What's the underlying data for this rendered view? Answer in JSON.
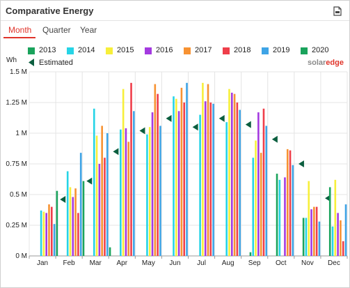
{
  "widget": {
    "title": "Comparative Energy",
    "export_icon": "document-export-icon"
  },
  "tabs": [
    {
      "label": "Month",
      "active": true
    },
    {
      "label": "Quarter",
      "active": false
    },
    {
      "label": "Year",
      "active": false
    }
  ],
  "colors": {
    "accent": "#e0342a",
    "estimated_marker": "#0b5e3f"
  },
  "brand": {
    "part1": "solar",
    "part2": "edge"
  },
  "chart_data": {
    "type": "bar",
    "title": "",
    "ylabel": "Wh",
    "xlabel": "",
    "ylim": [
      0,
      1500000
    ],
    "yticks": [
      0,
      250000,
      500000,
      750000,
      1000000,
      1250000,
      1500000
    ],
    "ytick_labels": [
      "0 M",
      "0.25 M",
      "0.5 M",
      "0.75 M",
      "1 M",
      "1.25 M",
      "1.5 M"
    ],
    "grid": true,
    "legend_position": "top",
    "categories": [
      "Jan",
      "Feb",
      "Mar",
      "Apr",
      "May",
      "Jun",
      "Jul",
      "Aug",
      "Sep",
      "Oct",
      "Nov",
      "Dec"
    ],
    "series": [
      {
        "name": "2013",
        "color": "#1aa35c",
        "values": [
          null,
          null,
          null,
          null,
          null,
          null,
          null,
          null,
          30000,
          670000,
          310000,
          560000
        ]
      },
      {
        "name": "2014",
        "color": "#26d4e6",
        "values": [
          370000,
          690000,
          1200000,
          1030000,
          990000,
          1300000,
          1150000,
          1090000,
          800000,
          620000,
          310000,
          240000
        ]
      },
      {
        "name": "2015",
        "color": "#f7ef3a",
        "values": [
          360000,
          560000,
          980000,
          1360000,
          1050000,
          1280000,
          1410000,
          1360000,
          940000,
          null,
          610000,
          620000
        ]
      },
      {
        "name": "2016",
        "color": "#a43ae0",
        "values": [
          350000,
          480000,
          750000,
          1040000,
          1170000,
          1180000,
          1260000,
          1330000,
          1170000,
          640000,
          380000,
          350000
        ]
      },
      {
        "name": "2017",
        "color": "#f79232",
        "values": [
          420000,
          550000,
          1060000,
          930000,
          1400000,
          1370000,
          1400000,
          1320000,
          840000,
          870000,
          400000,
          290000
        ]
      },
      {
        "name": "2018",
        "color": "#ef3e4a",
        "values": [
          400000,
          350000,
          800000,
          1410000,
          1320000,
          1250000,
          1250000,
          1250000,
          1200000,
          860000,
          400000,
          120000
        ]
      },
      {
        "name": "2019",
        "color": "#3ea4e6",
        "values": [
          260000,
          840000,
          1000000,
          1180000,
          1060000,
          1410000,
          1240000,
          1190000,
          1060000,
          740000,
          280000,
          420000
        ]
      },
      {
        "name": "2020",
        "color": "#1aa35c",
        "values": [
          530000,
          610000,
          70000,
          null,
          null,
          null,
          null,
          null,
          null,
          null,
          null,
          null
        ]
      }
    ],
    "estimated": {
      "name": "Estimated",
      "color": "#0b5e3f",
      "values": [
        460000,
        610000,
        850000,
        1020000,
        1120000,
        1050000,
        1120000,
        1070000,
        950000,
        750000,
        470000,
        400000
      ]
    }
  }
}
